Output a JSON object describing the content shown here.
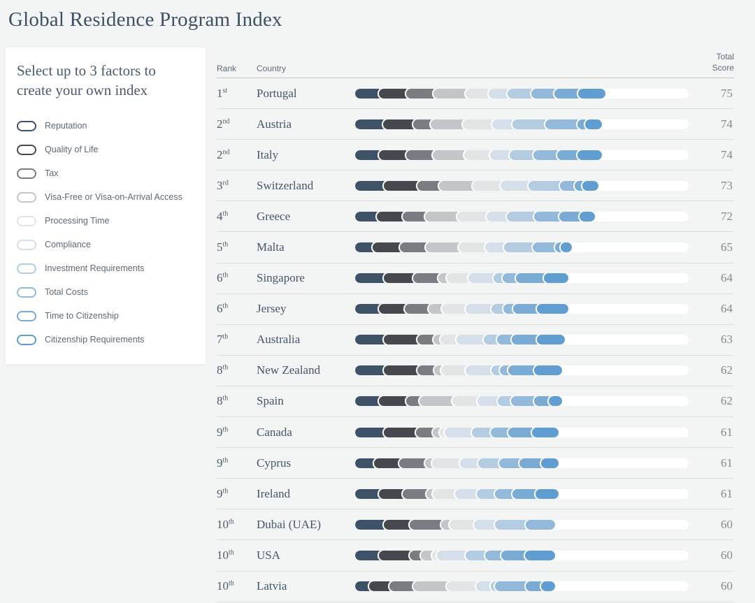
{
  "page": {
    "title": "Global Residence Program Index"
  },
  "sidebar": {
    "heading": "Select up to 3 factors to create your own index"
  },
  "table": {
    "headers": {
      "rank": "Rank",
      "country": "Country",
      "total_score": "Total Score"
    }
  },
  "chart_data": {
    "type": "stacked-bar",
    "title": "Global Residence Program Index",
    "axis": {
      "max": 100
    },
    "legend_position": "left-sidebar",
    "factors": [
      {
        "label": "Reputation",
        "color": "#3d5266"
      },
      {
        "label": "Quality of Life",
        "color": "#45484d"
      },
      {
        "label": "Tax",
        "color": "#797d81"
      },
      {
        "label": "Visa-Free or Visa-on-Arrival Access",
        "color": "#c3c6c9"
      },
      {
        "label": "Processing Time",
        "color": "#e2e4e6"
      },
      {
        "label": "Compliance",
        "color": "#d4dfe9"
      },
      {
        "label": "Investment Requirements",
        "color": "#b4cce1"
      },
      {
        "label": "Total Costs",
        "color": "#93b9da"
      },
      {
        "label": "Time to Citizenship",
        "color": "#79abd5"
      },
      {
        "label": "Citizenship Requirements",
        "color": "#609dd0"
      }
    ],
    "rows": [
      {
        "rank": "1",
        "ordinal": "st",
        "country": "Portugal",
        "total": 75,
        "segments": [
          8.5,
          8.1,
          8.1,
          9.7,
          6.9,
          5.6,
          7.3,
          6.9,
          7.0,
          6.9
        ]
      },
      {
        "rank": "2",
        "ordinal": "nd",
        "country": "Austria",
        "total": 74,
        "segments": [
          9.6,
          9.2,
          5.2,
          9.6,
          8.8,
          6.0,
          10.0,
          9.6,
          2.2,
          3.8
        ]
      },
      {
        "rank": "2",
        "ordinal": "nd",
        "country": "Italy",
        "total": 74,
        "segments": [
          8.4,
          8.1,
          8.1,
          9.3,
          7.8,
          6.0,
          7.1,
          7.1,
          6.0,
          6.1
        ]
      },
      {
        "rank": "3",
        "ordinal": "rd",
        "country": "Switzerland",
        "total": 73,
        "segments": [
          10.0,
          9.9,
          6.6,
          10.0,
          8.4,
          8.4,
          9.5,
          4.4,
          2.3,
          3.5
        ]
      },
      {
        "rank": "4",
        "ordinal": "th",
        "country": "Greece",
        "total": 72,
        "segments": [
          7.9,
          7.7,
          6.7,
          9.7,
          8.7,
          6.1,
          8.1,
          7.7,
          6.1,
          3.3
        ]
      },
      {
        "rank": "5",
        "ordinal": "th",
        "country": "Malta",
        "total": 65,
        "segments": [
          6.5,
          8.2,
          7.7,
          10.0,
          7.9,
          5.7,
          8.6,
          6.7,
          1.6,
          2.1
        ]
      },
      {
        "rank": "6",
        "ordinal": "th",
        "country": "Singapore",
        "total": 64,
        "segments": [
          9.9,
          8.7,
          7.7,
          2.4,
          6.5,
          7.7,
          2.6,
          4.0,
          8.4,
          6.1
        ]
      },
      {
        "rank": "6",
        "ordinal": "th",
        "country": "Jersey",
        "total": 64,
        "segments": [
          8.5,
          7.7,
          7.1,
          4.0,
          7.1,
          7.7,
          3.6,
          3.0,
          7.2,
          8.1
        ]
      },
      {
        "rank": "7",
        "ordinal": "th",
        "country": "Australia",
        "total": 63,
        "segments": [
          10.0,
          10.0,
          4.8,
          2.1,
          4.8,
          8.1,
          4.0,
          4.4,
          7.6,
          7.2
        ]
      },
      {
        "rank": "8",
        "ordinal": "th",
        "country": "New Zealand",
        "total": 62,
        "segments": [
          10.0,
          10.0,
          4.9,
          2.2,
          7.3,
          7.7,
          2.6,
          2.6,
          7.6,
          7.1
        ]
      },
      {
        "rank": "8",
        "ordinal": "th",
        "country": "Spain",
        "total": 62,
        "segments": [
          8.4,
          8.1,
          4.0,
          10.0,
          7.5,
          6.0,
          4.0,
          7.0,
          4.4,
          2.6
        ]
      },
      {
        "rank": "9",
        "ordinal": "th",
        "country": "Canada",
        "total": 61,
        "segments": [
          9.9,
          9.7,
          5.0,
          2.0,
          1.6,
          8.1,
          5.6,
          5.4,
          7.1,
          6.6
        ]
      },
      {
        "rank": "9",
        "ordinal": "th",
        "country": "Cyprus",
        "total": 61,
        "segments": [
          6.9,
          7.7,
          7.7,
          2.0,
          8.5,
          5.5,
          6.1,
          6.1,
          6.5,
          4.0
        ]
      },
      {
        "rank": "9",
        "ordinal": "th",
        "country": "Ireland",
        "total": 61,
        "segments": [
          8.4,
          7.1,
          7.1,
          2.0,
          6.7,
          6.5,
          5.5,
          5.1,
          7.0,
          5.6
        ]
      },
      {
        "rank": "10",
        "ordinal": "th",
        "country": "Dubai (UAE)",
        "total": 60,
        "segments": [
          9.9,
          7.7,
          9.5,
          2.4,
          7.4,
          6.4,
          9.1,
          7.6,
          0,
          0
        ]
      },
      {
        "rank": "10",
        "ordinal": "th",
        "country": "USA",
        "total": 60,
        "segments": [
          8.5,
          9.1,
          3.4,
          3.4,
          1.4,
          8.7,
          5.7,
          5.0,
          7.1,
          7.7
        ]
      },
      {
        "rank": "10",
        "ordinal": "th",
        "country": "Latvia",
        "total": 60,
        "segments": [
          5.5,
          6.1,
          7.1,
          10.0,
          8.8,
          4.4,
          1.4,
          9.1,
          4.6,
          3.0
        ]
      }
    ]
  }
}
